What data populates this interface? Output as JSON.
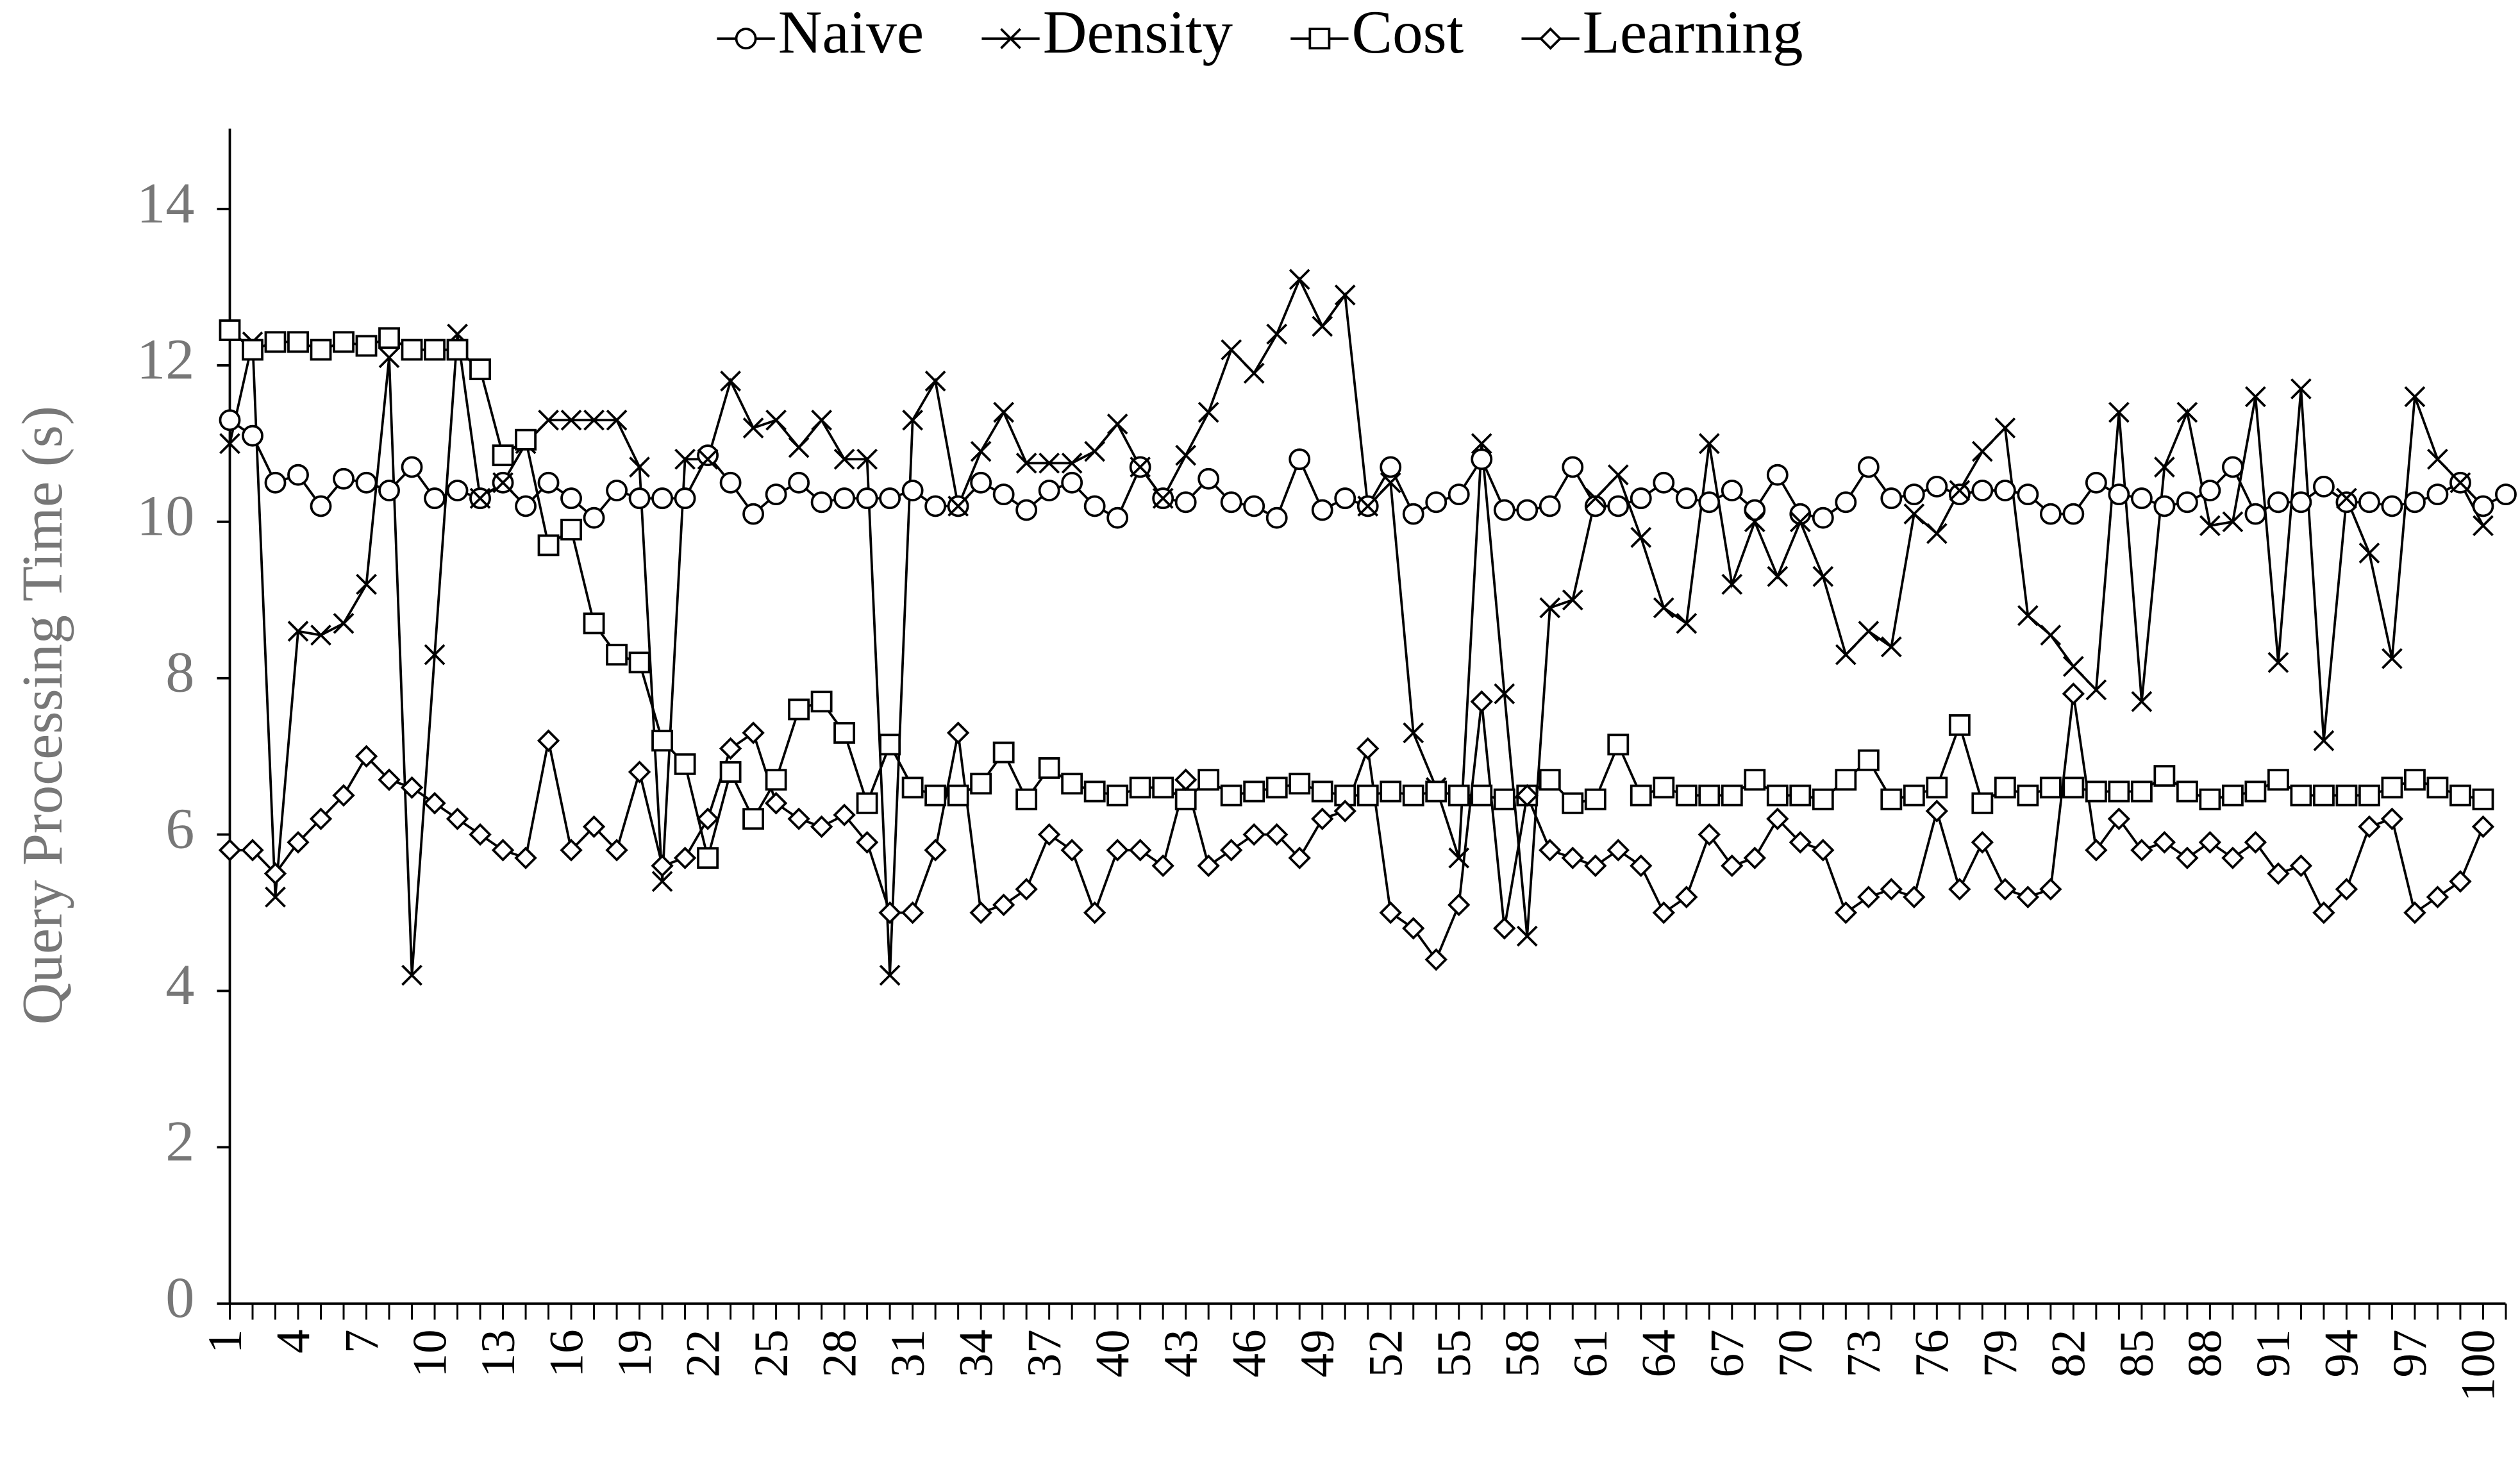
{
  "chart_data": {
    "type": "line",
    "y_label": "Query Processing Time (s)",
    "categories": [
      "1",
      null,
      null,
      "4",
      null,
      null,
      "7",
      null,
      null,
      "10",
      null,
      null,
      "13",
      null,
      null,
      "16",
      null,
      null,
      "19",
      null,
      null,
      "22",
      null,
      null,
      "25",
      null,
      null,
      "28",
      null,
      null,
      "31",
      null,
      null,
      "34",
      null,
      null,
      "37",
      null,
      null,
      "40",
      null,
      null,
      "43",
      null,
      null,
      "46",
      null,
      null,
      "49",
      null,
      null,
      "52",
      null,
      null,
      "55",
      null,
      null,
      "58",
      null,
      null,
      "61",
      null,
      null,
      "64",
      null,
      null,
      "67",
      null,
      null,
      "70",
      null,
      null,
      "73",
      null,
      null,
      "76",
      null,
      null,
      "79",
      null,
      null,
      "82",
      null,
      null,
      "85",
      null,
      null,
      "88",
      null,
      null,
      "91",
      null,
      null,
      "94",
      null,
      null,
      "97",
      null,
      null,
      "100",
      null
    ],
    "ylim": [
      0,
      15
    ],
    "yticks": [
      0,
      2,
      4,
      6,
      8,
      10,
      12,
      14
    ],
    "grid": false,
    "series": [
      {
        "name": "Naive",
        "marker": "circle",
        "color": "#000000",
        "values": [
          11.3,
          11.1,
          10.5,
          10.6,
          10.2,
          10.55,
          10.5,
          10.4,
          10.7,
          10.3,
          10.4,
          10.3,
          10.5,
          10.2,
          10.5,
          10.3,
          10.05,
          10.4,
          10.3,
          10.3,
          10.3,
          10.85,
          10.5,
          10.1,
          10.35,
          10.5,
          10.25,
          10.3,
          10.3,
          10.3,
          10.4,
          10.2,
          10.2,
          10.5,
          10.35,
          10.15,
          10.4,
          10.5,
          10.2,
          10.05,
          10.7,
          10.3,
          10.25,
          10.55,
          10.25,
          10.2,
          10.05,
          10.8,
          10.15,
          10.3,
          10.2,
          10.7,
          10.1,
          10.25,
          10.35,
          10.8,
          10.15,
          10.15,
          10.2,
          10.7,
          10.2,
          10.2,
          10.3,
          10.5,
          10.3,
          10.25,
          10.4,
          10.15,
          10.6,
          10.1,
          10.05,
          10.25,
          10.7,
          10.3,
          10.35,
          10.45,
          10.35,
          10.4,
          10.4,
          10.35,
          10.1,
          10.1,
          10.5,
          10.35,
          10.3,
          10.2,
          10.25,
          10.4,
          10.7,
          10.1,
          10.25,
          10.25,
          10.45,
          10.25,
          10.25,
          10.2,
          10.25,
          10.35,
          10.5,
          10.2,
          10.35
        ]
      },
      {
        "name": "Density",
        "marker": "x",
        "color": "#000000",
        "values": [
          11.0,
          12.3,
          5.2,
          8.6,
          8.55,
          8.7,
          9.2,
          12.1,
          4.2,
          8.3,
          12.4,
          10.3,
          10.5,
          11.0,
          11.3,
          11.3,
          11.3,
          11.3,
          10.7,
          5.4,
          10.8,
          10.8,
          11.8,
          11.2,
          11.3,
          10.95,
          11.3,
          10.8,
          10.8,
          4.2,
          11.3,
          11.8,
          10.2,
          10.9,
          11.4,
          10.75,
          10.75,
          10.75,
          10.9,
          11.25,
          10.7,
          10.3,
          10.85,
          11.4,
          12.2,
          11.9,
          12.4,
          13.1,
          12.5,
          12.9,
          10.2,
          10.5,
          7.3,
          6.6,
          5.7,
          11.0,
          7.8,
          4.7,
          8.9,
          9.0,
          10.3,
          10.6,
          9.8,
          8.9,
          8.7,
          11.0,
          9.2,
          10.0,
          9.3,
          10.0,
          9.3,
          8.3,
          8.6,
          8.4,
          10.1,
          9.85,
          10.4,
          10.9,
          11.2,
          8.8,
          8.55,
          8.15,
          7.85,
          11.4,
          7.7,
          10.7,
          11.4,
          9.95,
          10.0,
          11.6,
          8.2,
          11.7,
          7.2,
          10.3,
          9.6,
          8.25,
          11.6,
          10.8,
          10.5,
          9.95,
          null
        ]
      },
      {
        "name": "Cost",
        "marker": "square",
        "color": "#000000",
        "values": [
          12.45,
          12.2,
          12.3,
          12.3,
          12.2,
          12.3,
          12.25,
          12.35,
          12.2,
          12.2,
          12.2,
          11.95,
          10.85,
          11.05,
          9.7,
          9.9,
          8.7,
          8.3,
          8.2,
          7.2,
          6.9,
          5.7,
          6.8,
          6.2,
          6.7,
          7.6,
          7.7,
          7.3,
          6.4,
          7.15,
          6.6,
          6.5,
          6.5,
          6.65,
          7.05,
          6.45,
          6.85,
          6.65,
          6.55,
          6.5,
          6.6,
          6.6,
          6.45,
          6.7,
          6.5,
          6.55,
          6.6,
          6.65,
          6.55,
          6.5,
          6.5,
          6.55,
          6.5,
          6.55,
          6.5,
          6.5,
          6.45,
          6.5,
          6.7,
          6.4,
          6.45,
          7.15,
          6.5,
          6.6,
          6.5,
          6.5,
          6.5,
          6.7,
          6.5,
          6.5,
          6.45,
          6.7,
          6.95,
          6.45,
          6.5,
          6.6,
          7.4,
          6.4,
          6.6,
          6.5,
          6.6,
          6.6,
          6.55,
          6.55,
          6.55,
          6.75,
          6.55,
          6.45,
          6.5,
          6.55,
          6.7,
          6.5,
          6.5,
          6.5,
          6.5,
          6.6,
          6.7,
          6.6,
          6.5,
          6.45,
          null
        ]
      },
      {
        "name": "Learning",
        "marker": "diamond",
        "color": "#000000",
        "values": [
          5.8,
          5.8,
          5.5,
          5.9,
          6.2,
          6.5,
          7.0,
          6.7,
          6.6,
          6.4,
          6.2,
          6.0,
          5.8,
          5.7,
          7.2,
          5.8,
          6.1,
          5.8,
          6.8,
          5.6,
          5.7,
          6.2,
          7.1,
          7.3,
          6.4,
          6.2,
          6.1,
          6.25,
          5.9,
          5.0,
          5.0,
          5.8,
          7.3,
          5.0,
          5.1,
          5.3,
          6.0,
          5.8,
          5.0,
          5.8,
          5.8,
          5.6,
          6.7,
          5.6,
          5.8,
          6.0,
          6.0,
          5.7,
          6.2,
          6.3,
          7.1,
          5.0,
          4.8,
          4.4,
          5.1,
          7.7,
          4.8,
          6.5,
          5.8,
          5.7,
          5.6,
          5.8,
          5.6,
          5.0,
          5.2,
          6.0,
          5.6,
          5.7,
          6.2,
          5.9,
          5.8,
          5.0,
          5.2,
          5.3,
          5.2,
          6.3,
          5.3,
          5.9,
          5.3,
          5.2,
          5.3,
          7.8,
          5.8,
          6.2,
          5.8,
          5.9,
          5.7,
          5.9,
          5.7,
          5.9,
          5.5,
          5.6,
          5.0,
          5.3,
          6.1,
          6.2,
          5.0,
          5.2,
          5.4,
          6.1,
          null
        ]
      }
    ]
  }
}
